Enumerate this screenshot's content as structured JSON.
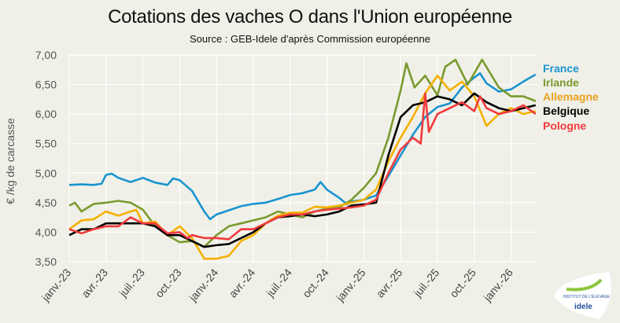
{
  "chart_data": {
    "type": "line",
    "title": "Cotations des vaches O dans l'Union européenne",
    "subtitle": "Source : GEB-Idele d'après Commission européenne",
    "ylabel": "€ /kg de carcasse",
    "xlabel": "",
    "ylim": [
      3.5,
      7.0
    ],
    "yticks": [
      "3,50",
      "4,00",
      "4,50",
      "5,00",
      "5,50",
      "6,00",
      "6,50",
      "7,00"
    ],
    "xlim": [
      "2023-01",
      "2026-03"
    ],
    "xticks": [
      "janv.-23",
      "avr.-23",
      "juil.-23",
      "oct.-23",
      "janv.-24",
      "avr.-24",
      "juil.-24",
      "oct.-24",
      "janv.-25",
      "avr.-25",
      "juil.-25",
      "oct.-25",
      "janv.-26"
    ],
    "grid": true,
    "legend": "right, labels at line ends",
    "series": [
      {
        "name": "France",
        "color": "#1a94d0",
        "points": [
          [
            "2023-01",
            4.8
          ],
          [
            "2023-02",
            4.81
          ],
          [
            "2023-03",
            4.8
          ],
          [
            "2023-03-20",
            4.82
          ],
          [
            "2023-04",
            4.97
          ],
          [
            "2023-04-15",
            4.99
          ],
          [
            "2023-05",
            4.92
          ],
          [
            "2023-06",
            4.85
          ],
          [
            "2023-07",
            4.92
          ],
          [
            "2023-08",
            4.84
          ],
          [
            "2023-09",
            4.8
          ],
          [
            "2023-09-15",
            4.91
          ],
          [
            "2023-10",
            4.88
          ],
          [
            "2023-11",
            4.7
          ],
          [
            "2023-12",
            4.35
          ],
          [
            "2023-12-15",
            4.22
          ],
          [
            "2024-01",
            4.3
          ],
          [
            "2024-02",
            4.37
          ],
          [
            "2024-03",
            4.44
          ],
          [
            "2024-04",
            4.48
          ],
          [
            "2024-05",
            4.5
          ],
          [
            "2024-06",
            4.56
          ],
          [
            "2024-07",
            4.63
          ],
          [
            "2024-08",
            4.66
          ],
          [
            "2024-09",
            4.72
          ],
          [
            "2024-09-15",
            4.85
          ],
          [
            "2024-10",
            4.72
          ],
          [
            "2024-11",
            4.58
          ],
          [
            "2024-11-20",
            4.47
          ],
          [
            "2024-12",
            4.52
          ],
          [
            "2025-01",
            4.55
          ],
          [
            "2025-02",
            4.62
          ],
          [
            "2025-03",
            4.95
          ],
          [
            "2025-04",
            5.3
          ],
          [
            "2025-05",
            5.65
          ],
          [
            "2025-06",
            5.95
          ],
          [
            "2025-07",
            6.12
          ],
          [
            "2025-08",
            6.18
          ],
          [
            "2025-09",
            6.45
          ],
          [
            "2025-10",
            6.62
          ],
          [
            "2025-10-15",
            6.69
          ],
          [
            "2025-11",
            6.52
          ],
          [
            "2025-12",
            6.38
          ],
          [
            "2026-01",
            6.42
          ],
          [
            "2026-02",
            6.55
          ],
          [
            "2026-03",
            6.67
          ]
        ]
      },
      {
        "name": "Irlande",
        "color": "#7a9a2e",
        "points": [
          [
            "2023-01",
            4.45
          ],
          [
            "2023-01-15",
            4.5
          ],
          [
            "2023-02",
            4.35
          ],
          [
            "2023-03",
            4.48
          ],
          [
            "2023-04",
            4.5
          ],
          [
            "2023-05",
            4.53
          ],
          [
            "2023-06",
            4.5
          ],
          [
            "2023-07",
            4.38
          ],
          [
            "2023-08",
            4.1
          ],
          [
            "2023-09",
            3.95
          ],
          [
            "2023-10",
            3.83
          ],
          [
            "2023-11",
            3.85
          ],
          [
            "2023-12",
            3.75
          ],
          [
            "2024-01",
            3.95
          ],
          [
            "2024-02",
            4.1
          ],
          [
            "2024-03",
            4.15
          ],
          [
            "2024-04",
            4.2
          ],
          [
            "2024-05",
            4.25
          ],
          [
            "2024-06",
            4.35
          ],
          [
            "2024-07",
            4.3
          ],
          [
            "2024-08",
            4.25
          ],
          [
            "2024-09",
            4.35
          ],
          [
            "2024-10",
            4.4
          ],
          [
            "2024-11",
            4.42
          ],
          [
            "2024-12",
            4.55
          ],
          [
            "2025-01",
            4.75
          ],
          [
            "2025-02",
            5.0
          ],
          [
            "2025-03",
            5.6
          ],
          [
            "2025-04",
            6.4
          ],
          [
            "2025-04-15",
            6.86
          ],
          [
            "2025-05-05",
            6.45
          ],
          [
            "2025-06",
            6.65
          ],
          [
            "2025-07",
            6.32
          ],
          [
            "2025-07-20",
            6.8
          ],
          [
            "2025-08-15",
            6.92
          ],
          [
            "2025-09-15",
            6.5
          ],
          [
            "2025-10-20",
            6.92
          ],
          [
            "2025-12",
            6.45
          ],
          [
            "2026-01",
            6.3
          ],
          [
            "2026-02",
            6.3
          ],
          [
            "2026-03",
            6.22
          ]
        ]
      },
      {
        "name": "Allemagne",
        "color": "#f5b000",
        "points": [
          [
            "2023-01",
            4.05
          ],
          [
            "2023-02",
            4.2
          ],
          [
            "2023-03",
            4.22
          ],
          [
            "2023-04",
            4.35
          ],
          [
            "2023-05",
            4.28
          ],
          [
            "2023-06",
            4.35
          ],
          [
            "2023-06-15",
            4.38
          ],
          [
            "2023-07",
            4.15
          ],
          [
            "2023-08",
            4.18
          ],
          [
            "2023-09",
            3.95
          ],
          [
            "2023-10",
            4.1
          ],
          [
            "2023-11",
            3.9
          ],
          [
            "2023-12",
            3.55
          ],
          [
            "2024-01",
            3.55
          ],
          [
            "2024-02",
            3.6
          ],
          [
            "2024-03",
            3.85
          ],
          [
            "2024-04",
            3.95
          ],
          [
            "2024-05",
            4.15
          ],
          [
            "2024-06",
            4.28
          ],
          [
            "2024-07",
            4.33
          ],
          [
            "2024-08",
            4.33
          ],
          [
            "2024-09",
            4.43
          ],
          [
            "2024-10",
            4.42
          ],
          [
            "2024-11",
            4.45
          ],
          [
            "2024-12",
            4.5
          ],
          [
            "2025-01",
            4.55
          ],
          [
            "2025-02",
            4.72
          ],
          [
            "2025-03",
            5.2
          ],
          [
            "2025-04",
            5.6
          ],
          [
            "2025-05",
            5.95
          ],
          [
            "2025-06",
            6.35
          ],
          [
            "2025-07",
            6.65
          ],
          [
            "2025-08",
            6.4
          ],
          [
            "2025-09",
            6.55
          ],
          [
            "2025-10",
            6.3
          ],
          [
            "2025-11",
            5.8
          ],
          [
            "2025-12",
            6.0
          ],
          [
            "2026-01",
            6.1
          ],
          [
            "2026-02",
            6.0
          ],
          [
            "2026-03",
            6.05
          ]
        ]
      },
      {
        "name": "Belgique",
        "color": "#000000",
        "points": [
          [
            "2023-01",
            3.95
          ],
          [
            "2023-02",
            4.05
          ],
          [
            "2023-03",
            4.05
          ],
          [
            "2023-04",
            4.15
          ],
          [
            "2023-05",
            4.15
          ],
          [
            "2023-06",
            4.15
          ],
          [
            "2023-07",
            4.15
          ],
          [
            "2023-08",
            4.1
          ],
          [
            "2023-09",
            3.95
          ],
          [
            "2023-10",
            3.95
          ],
          [
            "2023-11",
            3.85
          ],
          [
            "2023-12",
            3.75
          ],
          [
            "2024-01",
            3.78
          ],
          [
            "2024-02",
            3.8
          ],
          [
            "2024-03",
            3.9
          ],
          [
            "2024-04",
            4.0
          ],
          [
            "2024-05",
            4.15
          ],
          [
            "2024-06",
            4.25
          ],
          [
            "2024-07",
            4.27
          ],
          [
            "2024-08",
            4.3
          ],
          [
            "2024-09",
            4.27
          ],
          [
            "2024-10",
            4.3
          ],
          [
            "2024-11",
            4.35
          ],
          [
            "2024-12",
            4.45
          ],
          [
            "2025-01",
            4.47
          ],
          [
            "2025-02",
            4.5
          ],
          [
            "2025-03",
            5.3
          ],
          [
            "2025-04",
            5.95
          ],
          [
            "2025-05",
            6.15
          ],
          [
            "2025-06",
            6.2
          ],
          [
            "2025-07",
            6.3
          ],
          [
            "2025-08",
            6.25
          ],
          [
            "2025-09",
            6.15
          ],
          [
            "2025-10",
            6.35
          ],
          [
            "2025-11",
            6.2
          ],
          [
            "2025-12",
            6.1
          ],
          [
            "2026-01",
            6.05
          ],
          [
            "2026-02",
            6.1
          ],
          [
            "2026-03",
            6.15
          ]
        ]
      },
      {
        "name": "Pologne",
        "color": "#f23a3c",
        "points": [
          [
            "2023-01",
            4.05
          ],
          [
            "2023-02",
            3.98
          ],
          [
            "2023-03",
            4.05
          ],
          [
            "2023-04",
            4.1
          ],
          [
            "2023-05",
            4.1
          ],
          [
            "2023-06",
            4.25
          ],
          [
            "2023-07",
            4.15
          ],
          [
            "2023-08",
            4.15
          ],
          [
            "2023-09",
            3.98
          ],
          [
            "2023-10",
            4.0
          ],
          [
            "2023-10-20",
            3.9
          ],
          [
            "2023-11",
            3.95
          ],
          [
            "2023-12",
            3.9
          ],
          [
            "2024-01",
            3.9
          ],
          [
            "2024-02",
            3.88
          ],
          [
            "2024-03",
            4.05
          ],
          [
            "2024-04",
            4.05
          ],
          [
            "2024-05",
            4.15
          ],
          [
            "2024-06",
            4.25
          ],
          [
            "2024-07",
            4.3
          ],
          [
            "2024-08",
            4.3
          ],
          [
            "2024-09",
            4.35
          ],
          [
            "2024-10",
            4.38
          ],
          [
            "2024-11",
            4.4
          ],
          [
            "2024-12",
            4.42
          ],
          [
            "2025-01",
            4.45
          ],
          [
            "2025-02",
            4.55
          ],
          [
            "2025-03",
            5.0
          ],
          [
            "2025-04",
            5.4
          ],
          [
            "2025-05",
            5.6
          ],
          [
            "2025-05-20",
            5.5
          ],
          [
            "2025-06-01",
            6.35
          ],
          [
            "2025-06-10",
            5.7
          ],
          [
            "2025-07",
            6.0
          ],
          [
            "2025-08",
            6.1
          ],
          [
            "2025-09",
            6.2
          ],
          [
            "2025-10",
            6.05
          ],
          [
            "2025-10-15",
            6.3
          ],
          [
            "2025-11",
            6.1
          ],
          [
            "2025-12",
            6.0
          ],
          [
            "2026-01",
            6.05
          ],
          [
            "2026-02",
            6.15
          ],
          [
            "2026-03",
            6.0
          ]
        ]
      }
    ]
  },
  "logo": {
    "text": "INSTITUT DE L'ÉLEVAGE idele",
    "brand": "idele"
  }
}
